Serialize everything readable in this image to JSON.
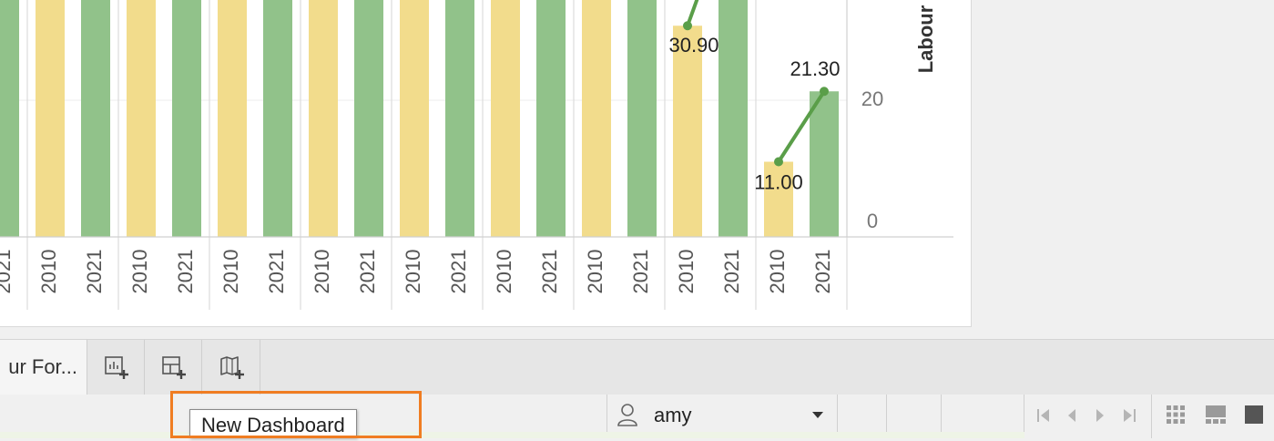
{
  "chart_data": {
    "type": "bar",
    "categories": [
      "2021",
      "2010",
      "2021",
      "2010",
      "2021",
      "2010",
      "2021",
      "2010",
      "2021",
      "2010",
      "2021",
      "2010",
      "2021",
      "2010",
      "2021",
      "2010",
      "2021",
      "2010",
      "2021"
    ],
    "values": [
      null,
      null,
      null,
      null,
      null,
      null,
      null,
      null,
      null,
      null,
      null,
      null,
      null,
      null,
      null,
      30.9,
      null,
      11.0,
      21.3
    ],
    "line_points": [
      {
        "x": "2010",
        "y": 30.9,
        "label": "30.90"
      },
      {
        "x": "2010",
        "y": 11.0,
        "label": "11.00"
      },
      {
        "x": "2021",
        "y": 21.3,
        "label": "21.30"
      }
    ],
    "ylabel": "Labour",
    "y_ticks": [
      "20",
      "0"
    ],
    "colors": {
      "2010": "#f2dc8c",
      "2021": "#91c28a",
      "line": "#5a9e49"
    }
  },
  "tabs": {
    "sheet_label": "ur For...",
    "new_worksheet_icon": "new-worksheet-icon",
    "new_dashboard_icon": "new-dashboard-icon",
    "new_story_icon": "new-story-icon"
  },
  "tooltip": {
    "text": "New Dashboard"
  },
  "status": {
    "user": "amy",
    "icons": [
      "first-page-icon",
      "prev-page-icon",
      "next-page-icon",
      "last-page-icon",
      "grid-view-icon",
      "filmstrip-view-icon",
      "single-view-icon"
    ]
  },
  "colors": {
    "highlight": "#f07d22"
  }
}
